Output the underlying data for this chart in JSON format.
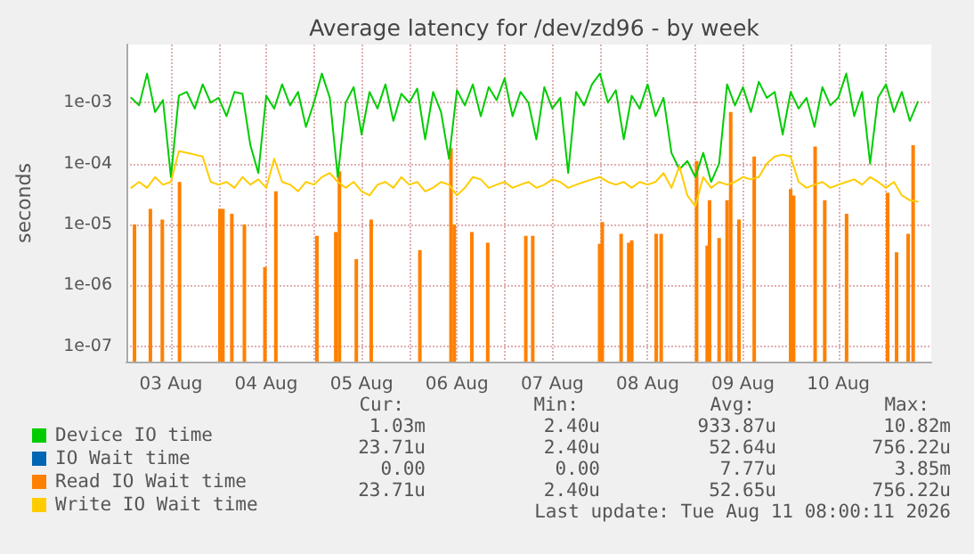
{
  "chart_data": {
    "type": "line",
    "title": "Average latency for /dev/zd96 - by week",
    "ylabel": "seconds",
    "log": "y",
    "grid": true,
    "legend": "bottom left",
    "marker": "none",
    "line_style": "solid",
    "xlim": [
      "2026-08-03T00:48",
      "2026-08-11T11:24"
    ],
    "xticks": [
      {
        "value": "2026-08-03T12:00",
        "label": "03 Aug"
      },
      {
        "value": "2026-08-04T00:00",
        "label": null
      },
      {
        "value": "2026-08-04T12:00",
        "label": "04 Aug"
      },
      {
        "value": "2026-08-05T00:00",
        "label": null
      },
      {
        "value": "2026-08-05T12:00",
        "label": "05 Aug"
      },
      {
        "value": "2026-08-06T00:00",
        "label": null
      },
      {
        "value": "2026-08-06T12:00",
        "label": "06 Aug"
      },
      {
        "value": "2026-08-07T00:00",
        "label": null
      },
      {
        "value": "2026-08-07T12:00",
        "label": "07 Aug"
      },
      {
        "value": "2026-08-08T00:00",
        "label": null
      },
      {
        "value": "2026-08-08T12:00",
        "label": "08 Aug"
      },
      {
        "value": "2026-08-09T00:00",
        "label": null
      },
      {
        "value": "2026-08-09T12:00",
        "label": "09 Aug"
      },
      {
        "value": "2026-08-10T00:00",
        "label": null
      },
      {
        "value": "2026-08-10T12:00",
        "label": "10 Aug"
      },
      {
        "value": "2026-08-11T00:00",
        "label": null
      }
    ],
    "ylim": [
      5.6e-08,
      0.009
    ],
    "yticks": [
      {
        "value": 1e-07,
        "label": "1e-07"
      },
      {
        "value": 1e-06,
        "label": "1e-06"
      },
      {
        "value": 1e-05,
        "label": "1e-05"
      },
      {
        "value": 0.0001,
        "label": "1e-04"
      },
      {
        "value": 0.001,
        "label": "1e-03"
      }
    ],
    "x": [
      "2026-08-03T02:00",
      "2026-08-03T04:00",
      "2026-08-03T06:00",
      "2026-08-03T08:00",
      "2026-08-03T10:00",
      "2026-08-03T12:00",
      "2026-08-03T14:00",
      "2026-08-03T16:00",
      "2026-08-03T18:00",
      "2026-08-03T20:00",
      "2026-08-03T22:00",
      "2026-08-04T00:00",
      "2026-08-04T02:00",
      "2026-08-04T04:00",
      "2026-08-04T06:00",
      "2026-08-04T08:00",
      "2026-08-04T10:00",
      "2026-08-04T12:00",
      "2026-08-04T14:00",
      "2026-08-04T16:00",
      "2026-08-04T18:00",
      "2026-08-04T20:00",
      "2026-08-04T22:00",
      "2026-08-05T00:00",
      "2026-08-05T02:00",
      "2026-08-05T04:00",
      "2026-08-05T06:00",
      "2026-08-05T08:00",
      "2026-08-05T10:00",
      "2026-08-05T12:00",
      "2026-08-05T14:00",
      "2026-08-05T16:00",
      "2026-08-05T18:00",
      "2026-08-05T20:00",
      "2026-08-05T22:00",
      "2026-08-06T00:00",
      "2026-08-06T02:00",
      "2026-08-06T04:00",
      "2026-08-06T06:00",
      "2026-08-06T08:00",
      "2026-08-06T10:00",
      "2026-08-06T12:00",
      "2026-08-06T14:00",
      "2026-08-06T16:00",
      "2026-08-06T18:00",
      "2026-08-06T20:00",
      "2026-08-06T22:00",
      "2026-08-07T00:00",
      "2026-08-07T02:00",
      "2026-08-07T04:00",
      "2026-08-07T06:00",
      "2026-08-07T08:00",
      "2026-08-07T10:00",
      "2026-08-07T12:00",
      "2026-08-07T14:00",
      "2026-08-07T16:00",
      "2026-08-07T18:00",
      "2026-08-07T20:00",
      "2026-08-07T22:00",
      "2026-08-08T00:00",
      "2026-08-08T02:00",
      "2026-08-08T04:00",
      "2026-08-08T06:00",
      "2026-08-08T08:00",
      "2026-08-08T10:00",
      "2026-08-08T12:00",
      "2026-08-08T14:00",
      "2026-08-08T16:00",
      "2026-08-08T18:00",
      "2026-08-08T20:00",
      "2026-08-08T22:00",
      "2026-08-09T00:00",
      "2026-08-09T02:00",
      "2026-08-09T04:00",
      "2026-08-09T06:00",
      "2026-08-09T08:00",
      "2026-08-09T10:00",
      "2026-08-09T12:00",
      "2026-08-09T14:00",
      "2026-08-09T16:00",
      "2026-08-09T18:00",
      "2026-08-09T20:00",
      "2026-08-09T22:00",
      "2026-08-10T00:00",
      "2026-08-10T02:00",
      "2026-08-10T04:00",
      "2026-08-10T06:00",
      "2026-08-10T08:00",
      "2026-08-10T10:00",
      "2026-08-10T12:00",
      "2026-08-10T14:00",
      "2026-08-10T16:00",
      "2026-08-10T18:00",
      "2026-08-10T20:00",
      "2026-08-10T22:00",
      "2026-08-11T00:00",
      "2026-08-11T02:00",
      "2026-08-11T04:00",
      "2026-08-11T06:00",
      "2026-08-11T08:00"
    ],
    "series": [
      {
        "name": "Device IO time",
        "color": "#00cc00",
        "values": [
          0.0012,
          0.0009,
          0.003,
          0.0007,
          0.0011,
          6e-05,
          0.0013,
          0.0015,
          0.0008,
          0.002,
          0.001,
          0.0012,
          0.0006,
          0.0015,
          0.0014,
          0.0002,
          7e-05,
          0.0013,
          0.0008,
          0.002,
          0.0009,
          0.0015,
          0.0004,
          0.001,
          0.003,
          0.0012,
          6e-05,
          0.001,
          0.0018,
          0.0003,
          0.0015,
          0.0008,
          0.002,
          0.0005,
          0.0014,
          0.001,
          0.0017,
          0.00025,
          0.0015,
          0.0007,
          0.00012,
          0.0016,
          0.0009,
          0.002,
          0.0006,
          0.0018,
          0.0011,
          0.0025,
          0.0006,
          0.0015,
          0.001,
          0.00025,
          0.0018,
          0.0008,
          0.0012,
          7e-05,
          0.0015,
          0.0009,
          0.002,
          0.003,
          0.001,
          0.0016,
          0.00025,
          0.0013,
          0.0008,
          0.002,
          0.0006,
          0.0012,
          0.00015,
          8e-05,
          0.00011,
          6e-05,
          0.00015,
          5e-05,
          0.0001,
          0.002,
          0.0009,
          0.0018,
          0.0007,
          0.0022,
          0.0012,
          0.0015,
          0.0003,
          0.0015,
          0.0008,
          0.0012,
          0.0004,
          0.0018,
          0.0009,
          0.0012,
          0.003,
          0.0006,
          0.0015,
          0.0001,
          0.0012,
          0.002,
          0.0007,
          0.0015,
          0.0005,
          0.00103
        ]
      },
      {
        "name": "IO Wait time",
        "color": "#0066b3",
        "values": [
          null,
          null,
          null,
          null,
          null,
          null,
          null,
          null,
          null,
          null,
          null,
          null,
          null,
          null,
          null,
          null,
          null,
          null,
          null,
          null,
          null,
          null,
          null,
          null,
          null,
          null,
          null,
          null,
          null,
          null,
          null,
          null,
          null,
          null,
          null,
          null,
          null,
          null,
          null,
          null,
          null,
          null,
          null,
          null,
          null,
          null,
          null,
          null,
          null,
          null,
          null,
          null,
          null,
          null,
          null,
          null,
          null,
          null,
          null,
          null,
          null,
          null,
          null,
          null,
          null,
          null,
          null,
          null,
          null,
          null,
          null,
          null,
          null,
          null,
          null,
          null,
          null,
          null,
          null,
          null,
          null,
          null,
          null,
          null,
          null,
          null,
          null,
          null,
          null,
          null,
          null,
          null,
          null,
          null,
          null,
          null,
          null,
          null,
          null,
          null
        ]
      },
      {
        "name": "Read IO Wait time",
        "color": "#ff8000",
        "type": "bar",
        "x": [
          "2026-08-03T02:50",
          "2026-08-03T06:50",
          "2026-08-03T09:50",
          "2026-08-03T14:10",
          "2026-08-04T00:20",
          "2026-08-04T01:05",
          "2026-08-04T03:20",
          "2026-08-04T06:30",
          "2026-08-04T11:40",
          "2026-08-04T14:25",
          "2026-08-05T00:45",
          "2026-08-05T05:30",
          "2026-08-05T06:25",
          "2026-08-05T10:40",
          "2026-08-05T14:25",
          "2026-08-06T02:40",
          "2026-08-06T10:30",
          "2026-08-06T11:20",
          "2026-08-06T15:45",
          "2026-08-06T19:45",
          "2026-08-07T05:20",
          "2026-08-07T07:05",
          "2026-08-07T23:55",
          "2026-08-08T00:35",
          "2026-08-08T05:20",
          "2026-08-08T07:15",
          "2026-08-08T08:00",
          "2026-08-08T14:10",
          "2026-08-08T15:25",
          "2026-08-09T00:20",
          "2026-08-09T03:00",
          "2026-08-09T03:35",
          "2026-08-09T06:00",
          "2026-08-09T08:00",
          "2026-08-09T08:55",
          "2026-08-09T11:00",
          "2026-08-09T14:50",
          "2026-08-10T00:00",
          "2026-08-10T00:45",
          "2026-08-10T06:10",
          "2026-08-10T08:35",
          "2026-08-10T14:05",
          "2026-08-11T00:25",
          "2026-08-11T02:40",
          "2026-08-11T05:35",
          "2026-08-11T06:50"
        ],
        "values": [
          1e-05,
          1.8e-05,
          1.2e-05,
          5e-05,
          1.8e-05,
          1.8e-05,
          1.5e-05,
          1e-05,
          2e-06,
          3.5e-05,
          6.5e-06,
          7.5e-06,
          7.5e-05,
          2.7e-06,
          1.2e-05,
          3.8e-06,
          0.00018,
          1e-05,
          7.5e-06,
          5e-06,
          6.5e-06,
          6.5e-06,
          4.8e-06,
          1.1e-05,
          7e-06,
          5e-06,
          5.5e-06,
          7e-06,
          7e-06,
          0.00011,
          4.5e-06,
          2.5e-05,
          6e-06,
          2.5e-05,
          0.0007,
          1.2e-05,
          0.00013,
          3.8e-05,
          3e-05,
          0.00019,
          2.5e-05,
          1.5e-05,
          3.3e-05,
          3.5e-06,
          7e-06,
          0.0002
        ]
      },
      {
        "name": "Write IO Wait time",
        "color": "#ffcc00",
        "values": [
          4e-05,
          5e-05,
          4e-05,
          6e-05,
          4.5e-05,
          5e-05,
          0.00016,
          0.00015,
          0.00014,
          0.00013,
          5e-05,
          4.5e-05,
          5e-05,
          4e-05,
          6e-05,
          4.5e-05,
          5.5e-05,
          4e-05,
          0.00012,
          5e-05,
          4.5e-05,
          3.5e-05,
          5e-05,
          4.5e-05,
          6e-05,
          7e-05,
          5e-05,
          4e-05,
          5e-05,
          3.5e-05,
          3e-05,
          4.5e-05,
          5e-05,
          4e-05,
          6e-05,
          4.5e-05,
          5e-05,
          3.5e-05,
          4e-05,
          5e-05,
          4.5e-05,
          3e-05,
          4e-05,
          6e-05,
          5.5e-05,
          4e-05,
          4.5e-05,
          5e-05,
          4e-05,
          4.5e-05,
          5e-05,
          4e-05,
          4.5e-05,
          5.5e-05,
          5e-05,
          4e-05,
          4.5e-05,
          5e-05,
          5.5e-05,
          6e-05,
          5e-05,
          4.5e-05,
          5e-05,
          4e-05,
          5e-05,
          4.5e-05,
          5e-05,
          7e-05,
          4e-05,
          9e-05,
          3e-05,
          2e-05,
          6e-05,
          4e-05,
          5e-05,
          4.5e-05,
          5e-05,
          6e-05,
          5.5e-05,
          6e-05,
          0.0001,
          0.00013,
          0.00014,
          0.00013,
          5e-05,
          4e-05,
          4.5e-05,
          5e-05,
          4e-05,
          4.5e-05,
          5e-05,
          5.5e-05,
          4.5e-05,
          6e-05,
          5e-05,
          4e-05,
          5e-05,
          3e-05,
          2.5e-05,
          2.371e-05
        ]
      }
    ],
    "annotations": [
      "Cur:",
      "Min:",
      "Avg:",
      "Max:",
      "1.03m",
      "2.40u",
      "933.87u",
      "10.82m",
      "23.71u",
      "2.40u",
      "52.64u",
      "756.22u",
      "0.00",
      "0.00",
      "7.77u",
      "3.85m",
      "23.71u",
      "2.40u",
      "52.65u",
      "756.22u",
      "Last update: Tue Aug 11 08:00:11 2026"
    ]
  }
}
